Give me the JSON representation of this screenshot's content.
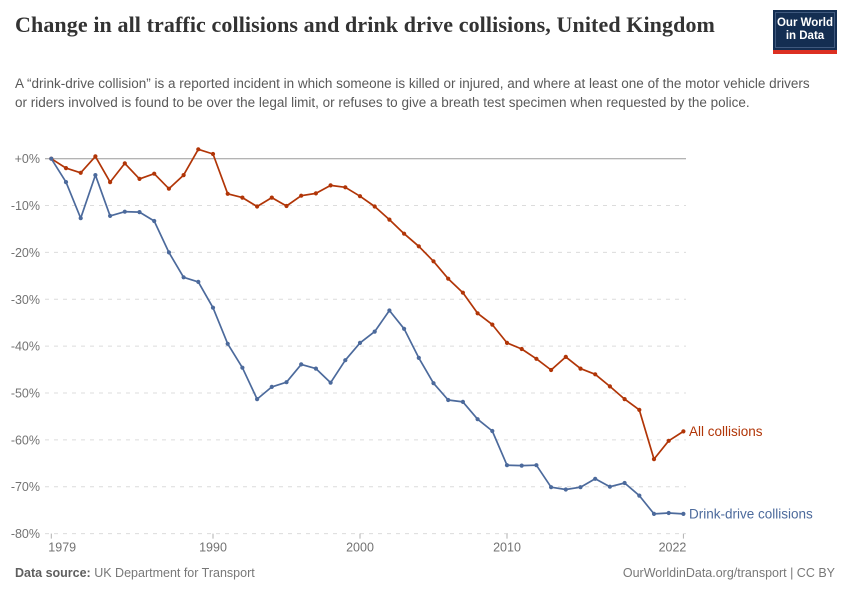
{
  "logo": {
    "line1": "Our World",
    "line2": "in Data"
  },
  "header": {
    "title": "Change in all traffic collisions and drink drive collisions, United Kingdom",
    "subtitle": "A “drink-drive collision” is a reported incident in which someone is killed or injured, and where at least one of the motor vehicle drivers or riders involved is found to be over the legal limit, or refuses to give a breath test specimen when requested by the police."
  },
  "footer": {
    "source_label": "Data source:",
    "source_value": "UK Department for Transport",
    "attribution": "OurWorldinData.org/transport | CC BY"
  },
  "colors": {
    "all_collisions": "#B13507",
    "drink_drive": "#4C6A9C",
    "zero_line": "#9A9A9A",
    "gridline": "#DCDCDC",
    "axis_text": "#737373",
    "logo_bg": "#142E52",
    "logo_stripe": "#DC3022"
  },
  "chart_data": {
    "type": "line",
    "title": "Change in all traffic collisions and drink drive collisions, United Kingdom",
    "xlabel": "",
    "ylabel": "",
    "ylim": [
      -80,
      0
    ],
    "grid": "horizontal-dashed",
    "legend_position": "end-of-line-labels",
    "x": [
      1979,
      1980,
      1981,
      1982,
      1983,
      1984,
      1985,
      1986,
      1987,
      1988,
      1989,
      1990,
      1991,
      1992,
      1993,
      1994,
      1995,
      1996,
      1997,
      1998,
      1999,
      2000,
      2001,
      2002,
      2003,
      2004,
      2005,
      2006,
      2007,
      2008,
      2009,
      2010,
      2011,
      2012,
      2013,
      2014,
      2015,
      2016,
      2017,
      2018,
      2019,
      2020,
      2021,
      2022
    ],
    "x_ticks": [
      1979,
      1990,
      2000,
      2010,
      2022
    ],
    "y_ticks": [
      {
        "label": "+0%",
        "value": 0
      },
      {
        "label": "-10%",
        "value": -10
      },
      {
        "label": "-20%",
        "value": -20
      },
      {
        "label": "-30%",
        "value": -30
      },
      {
        "label": "-40%",
        "value": -40
      },
      {
        "label": "-50%",
        "value": -50
      },
      {
        "label": "-60%",
        "value": -60
      },
      {
        "label": "-70%",
        "value": -70
      },
      {
        "label": "-80%",
        "value": -80
      }
    ],
    "unit": "%",
    "series": [
      {
        "name": "All collisions",
        "color": "#B13507",
        "values": [
          0,
          -2,
          -3,
          0.5,
          -5,
          -1,
          -4.3,
          -3.2,
          -6.4,
          -3.5,
          2,
          1,
          -7.5,
          -8.3,
          -10.2,
          -8.3,
          -10.1,
          -7.9,
          -7.4,
          -5.7,
          -6.1,
          -8,
          -10.2,
          -13,
          -16,
          -18.7,
          -21.9,
          -25.6,
          -28.6,
          -33,
          -35.4,
          -39.3,
          -40.6,
          -42.7,
          -45.1,
          -42.3,
          -44.8,
          -46,
          -48.6,
          -51.3,
          -53.6,
          -64.1,
          -60.2,
          -58.2
        ]
      },
      {
        "name": "Drink-drive collisions",
        "color": "#4C6A9C",
        "values": [
          0,
          -5,
          -12.7,
          -3.5,
          -12.2,
          -11.3,
          -11.4,
          -13.3,
          -20,
          -25.3,
          -26.3,
          -31.8,
          -39.5,
          -44.6,
          -51.3,
          -48.7,
          -47.7,
          -43.9,
          -44.8,
          -47.8,
          -43,
          -39.3,
          -36.9,
          -32.4,
          -36.3,
          -42.5,
          -47.9,
          -51.5,
          -51.9,
          -55.6,
          -58.1,
          -65.4,
          -65.5,
          -65.4,
          -70.1,
          -70.6,
          -70.1,
          -68.3,
          -70,
          -69.2,
          -71.9,
          -75.8,
          -75.6,
          -75.8
        ]
      }
    ]
  }
}
